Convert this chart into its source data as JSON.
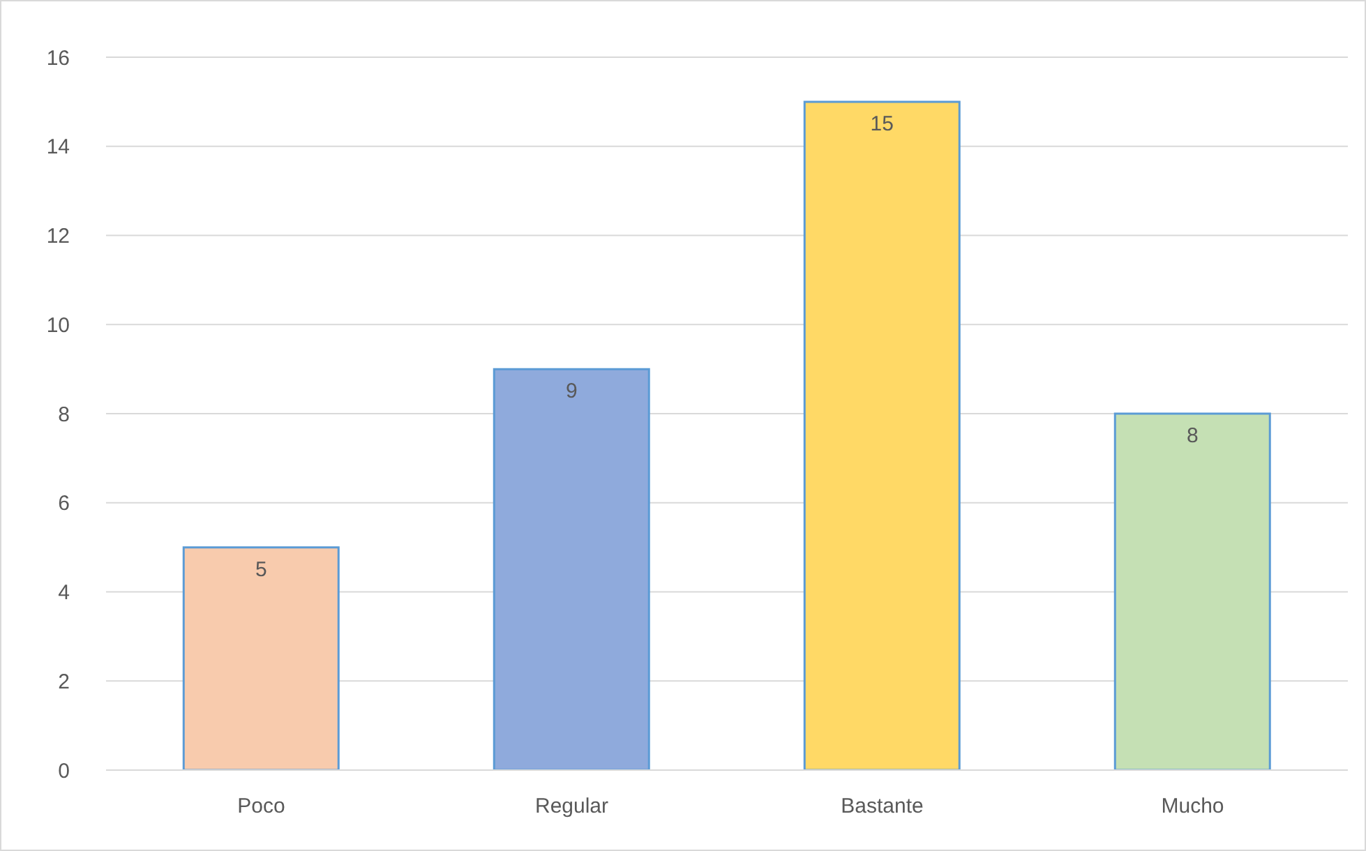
{
  "chart_data": {
    "type": "bar",
    "categories": [
      "Poco",
      "Regular",
      "Bastante",
      "Mucho"
    ],
    "values": [
      5,
      9,
      15,
      8
    ],
    "colors": [
      "#f8cbad",
      "#8faadc",
      "#ffd966",
      "#c5e0b4"
    ],
    "ylim": [
      0,
      16
    ],
    "yticks": [
      0,
      2,
      4,
      6,
      8,
      10,
      12,
      14,
      16
    ],
    "grid": "y",
    "data_labels": true,
    "legend": false
  }
}
